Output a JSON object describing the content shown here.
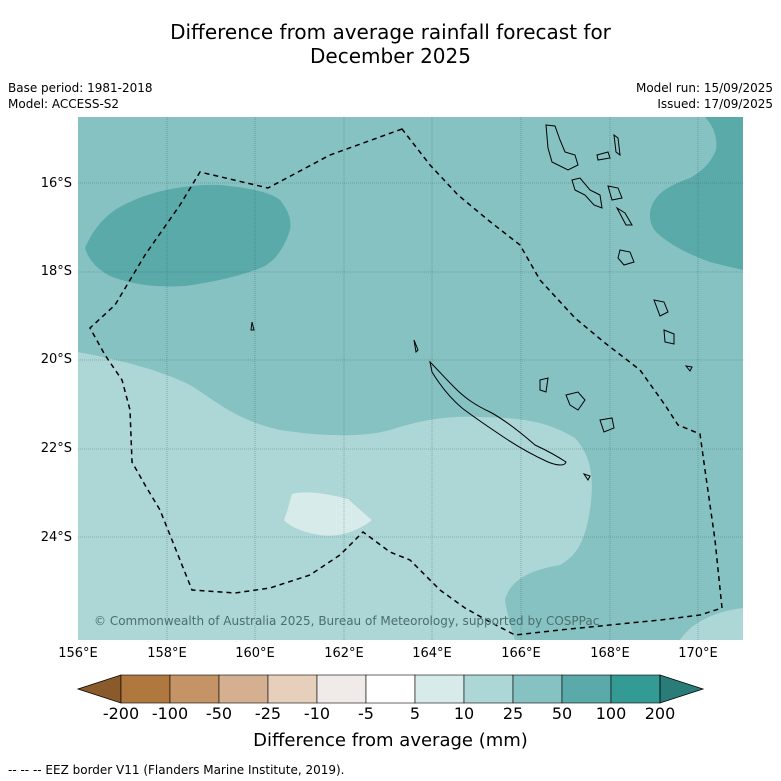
{
  "title_line1": "Difference from average rainfall forecast for",
  "title_line2": "December 2025",
  "meta": {
    "base_period": "Base period: 1981-2018",
    "model": "Model: ACCESS-S2",
    "model_run": "Model run: 15/09/2025",
    "issued": "Issued: 17/09/2025"
  },
  "map": {
    "lat_labels": [
      "16°S",
      "18°S",
      "20°S",
      "22°S",
      "24°S"
    ],
    "lon_labels": [
      "156°E",
      "158°E",
      "160°E",
      "162°E",
      "164°E",
      "166°E",
      "168°E",
      "170°E"
    ],
    "copyright": "© Commonwealth of Australia 2025, Bureau of Meteorology, supported by COSPPac",
    "colors": {
      "c25_50": "#86c2c1",
      "c50_100": "#5aaaaa",
      "c10_25": "#add6d6",
      "c5_10": "#d7ebea"
    }
  },
  "colorbar": {
    "ticks": [
      "-200",
      "-100",
      "-50",
      "-25",
      "-10",
      "-5",
      "5",
      "10",
      "25",
      "50",
      "100",
      "200"
    ],
    "colors": [
      "#8b5a2b",
      "#b0773f",
      "#c49467",
      "#d4b090",
      "#e6d0bb",
      "#f0ebe8",
      "#ffffff",
      "#d7ebea",
      "#add6d6",
      "#86c2c1",
      "#5aaaaa",
      "#339a94",
      "#2a7c78"
    ],
    "label": "Difference from average (mm)"
  },
  "legend_note": "-- -- -- EEZ border V11 (Flanders Marine Institute, 2019)."
}
